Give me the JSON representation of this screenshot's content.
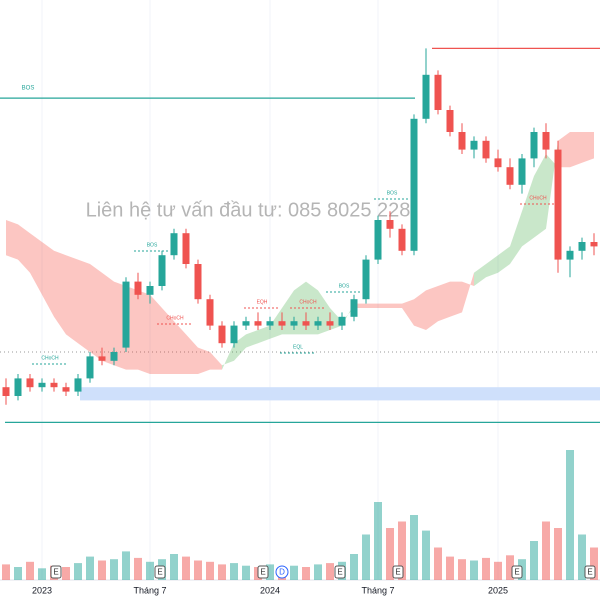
{
  "chart_data": {
    "type": "candlestick",
    "watermark": "Liên hệ tư vấn đầu tư:  085 8025 228",
    "categories": [
      null,
      null,
      null,
      "2023",
      null,
      null,
      null,
      null,
      null,
      null,
      null,
      null,
      "Tháng 7",
      null,
      null,
      null,
      null,
      null,
      null,
      null,
      null,
      null,
      "2024",
      null,
      null,
      null,
      null,
      null,
      null,
      null,
      null,
      "Tháng 7",
      null,
      null,
      null,
      null,
      null,
      null,
      null,
      null,
      null,
      "2025",
      null,
      null,
      null,
      null,
      null,
      null,
      null,
      null
    ],
    "open": [
      12,
      10,
      14,
      12,
      13,
      12,
      11,
      14,
      19,
      18,
      21,
      36,
      33,
      35,
      42,
      47,
      40,
      32,
      26,
      22,
      26,
      27,
      26,
      27,
      26,
      27,
      26,
      27,
      26,
      28,
      32,
      41,
      50,
      48,
      43,
      73,
      83,
      75,
      70,
      66,
      68,
      64,
      62,
      58,
      64,
      70,
      66,
      41,
      43,
      45
    ],
    "high": [
      14,
      15,
      15,
      14,
      14,
      13,
      15,
      20,
      21,
      21,
      37,
      38,
      36,
      43,
      48,
      48,
      41,
      33,
      27,
      27,
      28,
      29,
      28,
      29,
      28,
      29,
      28,
      29,
      29,
      33,
      42,
      51,
      52,
      49,
      74,
      89,
      84,
      76,
      72,
      69,
      69,
      66,
      64,
      65,
      71,
      72,
      68,
      44,
      46,
      47
    ],
    "low": [
      8,
      9,
      11,
      11,
      11,
      10,
      10,
      13,
      17,
      17,
      20,
      32,
      31,
      34,
      41,
      39,
      31,
      25,
      21,
      21,
      25,
      25,
      25,
      25,
      25,
      25,
      25,
      25,
      25,
      27,
      31,
      40,
      46,
      42,
      42,
      72,
      74,
      69,
      65,
      64,
      63,
      61,
      57,
      56,
      62,
      64,
      38,
      37,
      41,
      42
    ],
    "close": [
      10,
      14,
      12,
      13,
      12,
      11,
      14,
      19,
      18,
      20,
      36,
      33,
      35,
      42,
      47,
      40,
      32,
      26,
      22,
      26,
      27,
      26,
      27,
      26,
      27,
      26,
      27,
      26,
      28,
      32,
      41,
      50,
      48,
      43,
      73,
      83,
      75,
      70,
      66,
      68,
      64,
      62,
      58,
      64,
      70,
      66,
      41,
      43,
      45,
      44
    ],
    "volume": [
      12,
      10,
      14,
      9,
      11,
      10,
      13,
      18,
      15,
      16,
      22,
      17,
      14,
      16,
      20,
      18,
      15,
      14,
      12,
      13,
      11,
      10,
      12,
      9,
      11,
      10,
      12,
      13,
      14,
      20,
      35,
      60,
      40,
      45,
      50,
      38,
      25,
      18,
      16,
      15,
      17,
      14,
      19,
      16,
      30,
      45,
      40,
      100,
      35,
      25
    ],
    "span_a": [
      42,
      41,
      38,
      33,
      28,
      24,
      22,
      20,
      18,
      17,
      16,
      16,
      15,
      15,
      15,
      15,
      15,
      16,
      16,
      22,
      24,
      25,
      26,
      30,
      34,
      36,
      34,
      30,
      27,
      30,
      30,
      30,
      30,
      30,
      26,
      25,
      27,
      28,
      29,
      38,
      40,
      42,
      44,
      52,
      60,
      65,
      62,
      62,
      63,
      64
    ],
    "span_b": [
      50,
      49,
      47,
      45,
      43,
      42,
      41,
      40,
      38,
      36,
      35,
      34,
      33,
      30,
      27,
      24,
      21,
      20,
      17,
      18,
      21,
      22,
      23,
      24,
      24,
      24,
      24,
      25,
      26,
      31,
      31,
      31,
      31,
      31,
      32,
      34,
      35,
      36,
      36,
      35,
      37,
      38,
      40,
      44,
      46,
      48,
      68,
      70,
      70,
      70
    ],
    "up_color": "#26a69a",
    "down_color": "#ef5350",
    "levels": [
      {
        "name": "BOS",
        "value": 77.7,
        "color": "#26a69a"
      },
      {
        "value": 89,
        "color": "#ef5350"
      },
      {
        "value": 4,
        "color": "#26a69a"
      }
    ],
    "zone": [
      9,
      12
    ],
    "zone_color": "#cfe0fb",
    "annotations": [
      "CHoCH",
      "BOS",
      "CHoCH",
      "EQH",
      "CHoCH",
      "BOS",
      "EQL",
      "BOS",
      "CHoCH"
    ],
    "events": [
      "E",
      "E",
      "D",
      "E",
      "E",
      "E",
      "E",
      "E"
    ],
    "ylim": [
      0,
      100
    ],
    "vlim": [
      0,
      100
    ]
  }
}
